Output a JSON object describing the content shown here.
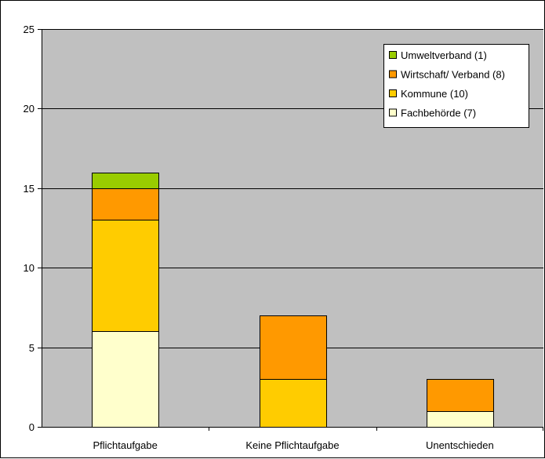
{
  "chart_data": {
    "type": "bar",
    "stacked": true,
    "title": "",
    "xlabel": "",
    "ylabel": "",
    "categories": [
      "Pflichtaufgabe",
      "Keine Pflichtaufgabe",
      "Unentschieden"
    ],
    "series": [
      {
        "name": "Fachbehörde (7)",
        "values": [
          6,
          0,
          1
        ],
        "color": "#FFFFCC"
      },
      {
        "name": "Kommune (10)",
        "values": [
          7,
          3,
          0
        ],
        "color": "#FFCC00"
      },
      {
        "name": "Wirtschaft/ Verband (8)",
        "values": [
          2,
          4,
          2
        ],
        "color": "#FF9900"
      },
      {
        "name": "Umweltverband (1)",
        "values": [
          1,
          0,
          0
        ],
        "color": "#99CC00"
      }
    ],
    "ylim": [
      0,
      25
    ],
    "yticks": [
      0,
      5,
      10,
      15,
      20,
      25
    ],
    "grid": true,
    "legend_position": "top-right",
    "plot_background": "#C0C0C0"
  }
}
